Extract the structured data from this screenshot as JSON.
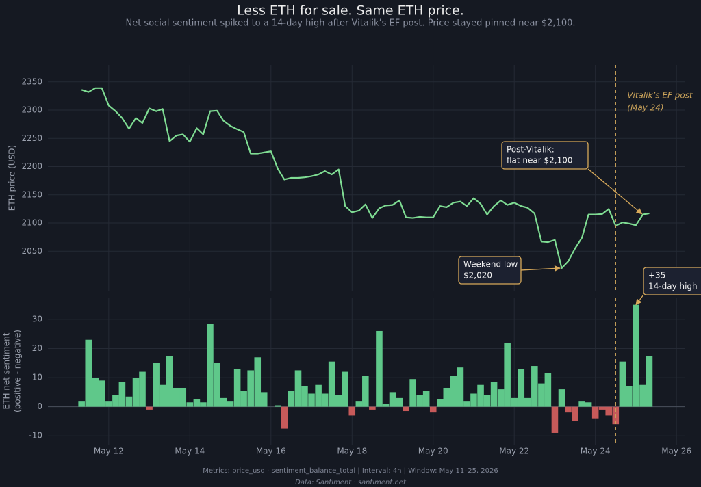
{
  "header": {
    "title": "Less ETH for sale. Same ETH price.",
    "subtitle": "Net social sentiment spiked to a 14-day high after Vitalik’s EF post. Price stayed pinned near $2,100."
  },
  "footer": {
    "metrics": "Metrics: price_usd · sentiment_balance_total  |  Interval: 4h  |  Window: May 11–25, 2026",
    "source": "Data: Santiment · santiment.net"
  },
  "chart_data": [
    {
      "type": "line",
      "ylabel": [
        "ETH price (USD)"
      ],
      "color": "#7fdc93",
      "grid": true,
      "xlim": [
        10.5,
        26.2
      ],
      "ylim": [
        1980,
        2380
      ],
      "yticks": [
        2050,
        2100,
        2150,
        2200,
        2250,
        2300,
        2350
      ],
      "x": [
        11.33,
        11.5,
        11.67,
        11.83,
        12,
        12.17,
        12.33,
        12.5,
        12.67,
        12.83,
        13,
        13.17,
        13.33,
        13.5,
        13.67,
        13.83,
        14,
        14.17,
        14.33,
        14.5,
        14.67,
        14.83,
        15,
        15.17,
        15.33,
        15.5,
        15.67,
        15.83,
        16,
        16.17,
        16.33,
        16.5,
        16.67,
        16.83,
        17,
        17.17,
        17.33,
        17.5,
        17.67,
        17.83,
        18,
        18.17,
        18.33,
        18.5,
        18.67,
        18.83,
        19,
        19.17,
        19.33,
        19.5,
        19.67,
        19.83,
        20,
        20.17,
        20.33,
        20.5,
        20.67,
        20.83,
        21,
        21.17,
        21.33,
        21.5,
        21.67,
        21.83,
        22,
        22.17,
        22.33,
        22.5,
        22.67,
        22.83,
        23,
        23.17,
        23.33,
        23.5,
        23.67,
        23.83,
        24,
        24.17,
        24.33,
        24.5,
        24.67,
        24.83,
        25,
        25.17,
        25.33
      ],
      "values": [
        2336,
        2332,
        2339,
        2339,
        2308,
        2298,
        2286,
        2267,
        2286,
        2277,
        2303,
        2298,
        2302,
        2245,
        2255,
        2257,
        2244,
        2268,
        2257,
        2298,
        2299,
        2281,
        2272,
        2266,
        2261,
        2223,
        2223,
        2225,
        2227,
        2196,
        2177,
        2180,
        2180,
        2181,
        2183,
        2186,
        2192,
        2186,
        2195,
        2130,
        2119,
        2122,
        2133,
        2109,
        2126,
        2131,
        2132,
        2140,
        2110,
        2109,
        2111,
        2110,
        2110,
        2130,
        2128,
        2136,
        2138,
        2130,
        2144,
        2134,
        2115,
        2130,
        2140,
        2132,
        2136,
        2130,
        2127,
        2117,
        2067,
        2066,
        2070,
        2020,
        2032,
        2055,
        2074,
        2115,
        2115,
        2116,
        2125,
        2095,
        2101,
        2099,
        2096,
        2115,
        2117
      ],
      "vline": {
        "x": 24.5,
        "label": [
          "Vitalik’s EF post",
          "(May 24)"
        ],
        "color": "#c9a25a"
      },
      "annotations": [
        {
          "text": [
            "Post-Vitalik:",
            "flat near $2,100"
          ],
          "x": 25.15,
          "y": 2116
        },
        {
          "text": [
            "Weekend low",
            "$2,020"
          ],
          "x": 23.13,
          "y": 2020
        }
      ]
    },
    {
      "type": "bar",
      "ylabel": [
        "ETH net sentiment",
        "(positive - negative)"
      ],
      "color": "#5fc88a",
      "negative_color": "#c75a5a",
      "grid": true,
      "xlim": [
        10.5,
        26.2
      ],
      "ylim": [
        -13,
        37.5
      ],
      "yticks": [
        -10,
        0,
        10,
        20,
        30
      ],
      "xticks": [
        {
          "value": 12,
          "label": "May 12"
        },
        {
          "value": 14,
          "label": "May 14"
        },
        {
          "value": 16,
          "label": "May 16"
        },
        {
          "value": 18,
          "label": "May 18"
        },
        {
          "value": 20,
          "label": "May 20"
        },
        {
          "value": 22,
          "label": "May 22"
        },
        {
          "value": 24,
          "label": "May 24"
        },
        {
          "value": 26,
          "label": "May 26"
        }
      ],
      "x": [
        11.33,
        11.5,
        11.67,
        11.83,
        12,
        12.17,
        12.33,
        12.5,
        12.67,
        12.83,
        13,
        13.17,
        13.33,
        13.5,
        13.67,
        13.83,
        14,
        14.17,
        14.33,
        14.5,
        14.67,
        14.83,
        15,
        15.17,
        15.33,
        15.5,
        15.67,
        15.83,
        16,
        16.17,
        16.33,
        16.5,
        16.67,
        16.83,
        17,
        17.17,
        17.33,
        17.5,
        17.67,
        17.83,
        18,
        18.17,
        18.33,
        18.5,
        18.67,
        18.83,
        19,
        19.17,
        19.33,
        19.5,
        19.67,
        19.83,
        20,
        20.17,
        20.33,
        20.5,
        20.67,
        20.83,
        21,
        21.17,
        21.33,
        21.5,
        21.67,
        21.83,
        22,
        22.17,
        22.33,
        22.5,
        22.67,
        22.83,
        23,
        23.17,
        23.33,
        23.5,
        23.67,
        23.83,
        24,
        24.17,
        24.33,
        24.5,
        24.67,
        24.83,
        25,
        25.17,
        25.33
      ],
      "values": [
        2,
        23,
        10,
        9,
        2,
        4,
        8.5,
        3.5,
        10,
        12,
        -1,
        15,
        7.5,
        17.5,
        6.5,
        6.5,
        1.5,
        2.5,
        1.5,
        28.5,
        15,
        3,
        2,
        13,
        5.5,
        12.5,
        17,
        5,
        0,
        0.5,
        -7.5,
        5.5,
        12.5,
        7,
        4.5,
        7.5,
        4.5,
        15.5,
        4,
        12,
        -3,
        2,
        10.5,
        -1,
        26,
        1,
        5,
        3,
        -1.5,
        9.5,
        4,
        5.5,
        -2,
        2.5,
        6.5,
        10.5,
        13.5,
        2,
        4.5,
        7.5,
        4,
        8.5,
        6,
        22,
        3,
        13,
        3,
        14,
        8,
        11.5,
        -9,
        6,
        -2,
        -5,
        2,
        1.5,
        -4,
        -1,
        -3,
        -6,
        15.5,
        7,
        35,
        7.5,
        17.5
      ],
      "vline": {
        "x": 24.5,
        "color": "#c9a25a"
      },
      "annotations": [
        {
          "text": [
            "+35",
            "14-day high"
          ],
          "x": 25.0,
          "y": 35
        }
      ]
    }
  ]
}
